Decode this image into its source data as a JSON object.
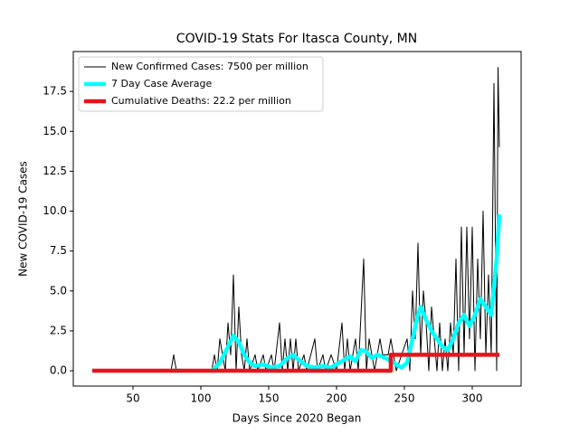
{
  "chart_data": {
    "type": "line",
    "title": "COVID-19 Stats For Itasca County, MN",
    "x_label": "Days Since 2020 Began",
    "y_label": "New COVID-19 Cases",
    "xlim": [
      6,
      336
    ],
    "ylim": [
      -0.96,
      20
    ],
    "xticks": [
      50,
      100,
      150,
      200,
      250,
      300
    ],
    "yticks": [
      {
        "value": 0,
        "label": "0.0"
      },
      2.5,
      {
        "value": 5,
        "label": "5.0"
      },
      7.5,
      {
        "value": 10,
        "label": "10.0"
      },
      12.5,
      {
        "value": 15,
        "label": "15.0"
      },
      17.5
    ],
    "legend": "upper left",
    "series": [
      {
        "name": "New Confirmed Cases: 7500 per million",
        "color": "#000000",
        "linewidth": 1,
        "x": [
          20,
          78,
          80,
          82,
          108,
          110,
          112,
          114,
          116,
          118,
          120,
          122,
          124,
          126,
          128,
          130,
          132,
          134,
          136,
          140,
          142,
          146,
          148,
          152,
          154,
          158,
          160,
          162,
          164,
          166,
          168,
          170,
          172,
          176,
          178,
          184,
          186,
          190,
          192,
          196,
          200,
          204,
          206,
          208,
          210,
          214,
          216,
          220,
          222,
          224,
          228,
          232,
          234,
          238,
          240,
          244,
          248,
          252,
          254,
          256,
          258,
          260,
          262,
          264,
          266,
          268,
          270,
          272,
          274,
          276,
          278,
          280,
          282,
          284,
          286,
          288,
          290,
          292,
          294,
          296,
          298,
          300,
          302,
          304,
          306,
          308,
          310,
          312,
          314,
          316,
          318,
          319,
          320
        ],
        "values": [
          0,
          0,
          1,
          0,
          0,
          1,
          0,
          2,
          1,
          0,
          3,
          1,
          6,
          0,
          4,
          1,
          0,
          2,
          0,
          1,
          0,
          1,
          0,
          1,
          0,
          3,
          0,
          2,
          0,
          2,
          0,
          2,
          0,
          1,
          0,
          2,
          0,
          1,
          0,
          1,
          0,
          3,
          0,
          2,
          0,
          2,
          0,
          7,
          0,
          2,
          0,
          2,
          1,
          1,
          2,
          0,
          1,
          2,
          0,
          5,
          2,
          8,
          1,
          5,
          3,
          0,
          4,
          2,
          0,
          3,
          0,
          2,
          0,
          3,
          1,
          7,
          0,
          9,
          1,
          9,
          2,
          9,
          0,
          7,
          2,
          10,
          1,
          6,
          1,
          18,
          0,
          19,
          14
        ]
      },
      {
        "name": "7 Day Case Average",
        "color": "#00ffff",
        "linewidth": 4.5,
        "x": [
          78,
          86,
          100,
          108,
          114,
          120,
          124,
          128,
          132,
          136,
          140,
          146,
          152,
          158,
          164,
          168,
          172,
          178,
          184,
          190,
          196,
          200,
          206,
          210,
          214,
          218,
          222,
          226,
          230,
          236,
          242,
          248,
          252,
          256,
          260,
          262,
          266,
          270,
          274,
          278,
          282,
          286,
          290,
          294,
          298,
          302,
          306,
          310,
          314,
          318,
          320
        ],
        "values": [
          0,
          0,
          null,
          0,
          0.5,
          1.5,
          2.2,
          1.8,
          1,
          0.5,
          0.3,
          0.4,
          0.2,
          0.3,
          0.8,
          1,
          0.7,
          0.3,
          0.2,
          0.3,
          0.2,
          0.4,
          0.7,
          0.9,
          0.6,
          1.3,
          1.2,
          0.8,
          1,
          0.8,
          0.5,
          0.2,
          0.5,
          2,
          3.5,
          4,
          3.2,
          2.5,
          2,
          1.5,
          1.3,
          2,
          3,
          3.5,
          2.8,
          3.5,
          4.5,
          4,
          3.5,
          7,
          9.8
        ]
      },
      {
        "name": "Cumulative Deaths: 22.2 per million",
        "color": "#e8131b",
        "linewidth": 4.5,
        "x": [
          20,
          240,
          240,
          320
        ],
        "values": [
          0,
          0,
          1,
          1
        ]
      }
    ]
  }
}
